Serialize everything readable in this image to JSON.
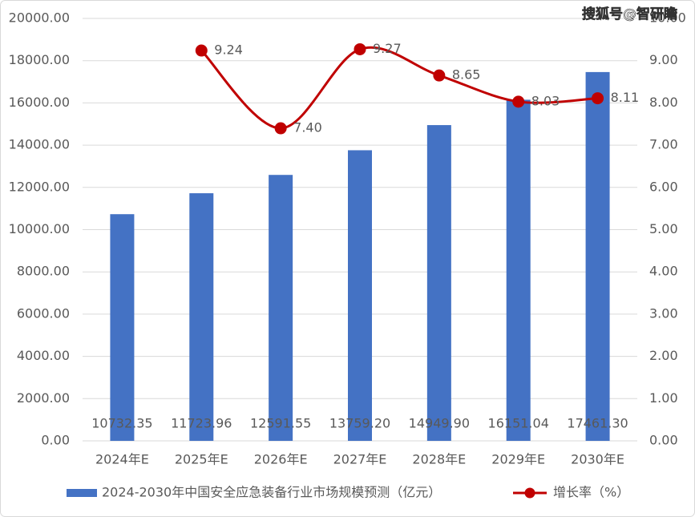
{
  "chart_data": {
    "type": "bar-line",
    "watermark": "搜狐号@智研瞻",
    "categories": [
      "2024年E",
      "2025年E",
      "2026年E",
      "2027年E",
      "2028年E",
      "2029年E",
      "2030年E"
    ],
    "series": [
      {
        "name": "2024-2030年中国安全应急装备行业市场规模预测（亿元）",
        "type": "bar",
        "color": "#4472c4",
        "values": [
          10732.35,
          11723.96,
          12591.55,
          13759.2,
          14949.9,
          16151.04,
          17461.3
        ],
        "value_labels": [
          "10732.35",
          "11723.96",
          "12591.55",
          "13759.20",
          "14949.90",
          "16151.04",
          "17461.30"
        ]
      },
      {
        "name": "增长率（%）",
        "type": "line",
        "axis": "y2",
        "color": "#c00000",
        "values": [
          null,
          9.24,
          7.4,
          9.27,
          8.65,
          8.03,
          8.11
        ],
        "value_labels": [
          null,
          "9.24",
          "7.40",
          "9.27",
          "8.65",
          "8.03",
          "8.11"
        ]
      }
    ],
    "ylim": [
      0,
      20000
    ],
    "yticks": [
      {
        "value": 0,
        "label": "0.00"
      },
      {
        "value": 2000,
        "label": "2000.00"
      },
      {
        "value": 4000,
        "label": "4000.00"
      },
      {
        "value": 6000,
        "label": "6000.00"
      },
      {
        "value": 8000,
        "label": "8000.00"
      },
      {
        "value": 10000,
        "label": "10000.00"
      },
      {
        "value": 12000,
        "label": "12000.00"
      },
      {
        "value": 14000,
        "label": "14000.00"
      },
      {
        "value": 16000,
        "label": "16000.00"
      },
      {
        "value": 18000,
        "label": "18000.00"
      },
      {
        "value": 20000,
        "label": "20000.00"
      }
    ],
    "y2lim": [
      0,
      10
    ],
    "y2ticks": [
      {
        "value": 0,
        "label": "0.00"
      },
      {
        "value": 1,
        "label": "1.00"
      },
      {
        "value": 2,
        "label": "2.00"
      },
      {
        "value": 3,
        "label": "3.00"
      },
      {
        "value": 4,
        "label": "4.00"
      },
      {
        "value": 5,
        "label": "5.00"
      },
      {
        "value": 6,
        "label": "6.00"
      },
      {
        "value": 7,
        "label": "7.00"
      },
      {
        "value": 8,
        "label": "8.00"
      },
      {
        "value": 9,
        "label": "9.00"
      },
      {
        "value": 10,
        "label": "10.00"
      }
    ],
    "grid": true,
    "legend": "bottom"
  }
}
